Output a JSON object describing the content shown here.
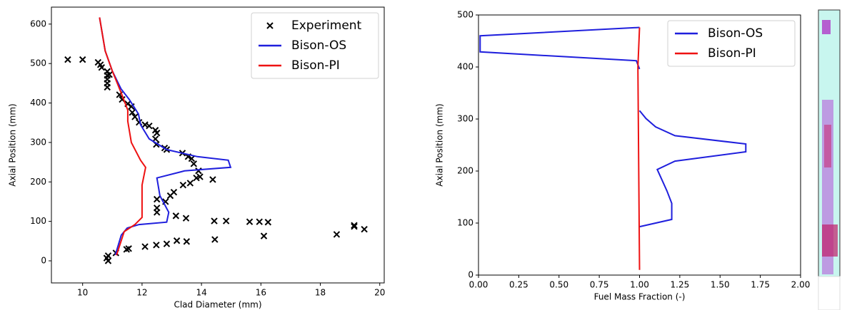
{
  "chart_data": [
    {
      "type": "line",
      "xlabel": "Clad Diameter (mm)",
      "ylabel": "Axial Position (mm)",
      "xlim": [
        8.95,
        20.15
      ],
      "ylim": [
        -56,
        643
      ],
      "xticks": [
        10,
        12,
        14,
        16,
        18,
        20
      ],
      "yticks": [
        0,
        100,
        200,
        300,
        400,
        500,
        600
      ],
      "legend": "upper right",
      "series": [
        {
          "name": "Experiment",
          "color": "#000000",
          "marker": "x",
          "x": [
            9.5,
            10.0,
            10.52,
            10.6,
            10.64,
            10.83,
            10.83,
            10.83,
            10.83,
            10.83,
            10.9,
            11.24,
            11.33,
            11.52,
            11.64,
            11.67,
            11.76,
            11.9,
            12.1,
            12.24,
            12.45,
            12.5,
            12.45,
            12.48,
            12.76,
            12.83,
            13.36,
            13.55,
            13.67,
            13.74,
            13.9,
            13.95,
            13.83,
            14.38,
            13.62,
            13.38,
            13.07,
            12.95,
            12.79,
            12.5,
            12.5,
            12.5,
            13.14,
            13.48,
            14.43,
            14.83,
            15.62,
            15.95,
            16.24,
            13.17,
            14.45,
            13.5,
            16.1,
            18.55,
            19.14,
            19.14,
            19.48,
            12.83,
            12.48,
            12.1,
            11.55,
            11.48,
            11.12,
            10.86,
            10.81,
            10.86
          ],
          "values": [
            510,
            510,
            503,
            497,
            490,
            480,
            470,
            460,
            450,
            440,
            472,
            421,
            409,
            398,
            391,
            376,
            365,
            351,
            345,
            342,
            331,
            324,
            309,
            295,
            286,
            282,
            273,
            264,
            259,
            246,
            228,
            213,
            210,
            206,
            197,
            192,
            174,
            165,
            150,
            156,
            134,
            123,
            114,
            108,
            101,
            101,
            99,
            99,
            98,
            51,
            54,
            49,
            63,
            67,
            90,
            87,
            80,
            43,
            40,
            36,
            31,
            29,
            20,
            13,
            7,
            0
          ]
        },
        {
          "name": "Bison-OS",
          "color": "#1f1fdd",
          "marker": "line",
          "x": [
            11.1,
            11.3,
            11.5,
            11.9,
            12.83,
            12.9,
            12.6,
            12.5,
            13.43,
            14.98,
            14.9,
            13.86,
            12.83,
            12.24,
            11.95,
            11.88,
            11.57,
            11.29,
            11.0,
            10.76,
            10.57
          ],
          "values": [
            15,
            65,
            83,
            92,
            98,
            123,
            165,
            210,
            228,
            237,
            255,
            264,
            282,
            309,
            345,
            372,
            409,
            436,
            481,
            532,
            617
          ]
        },
        {
          "name": "Bison-PI",
          "color": "#ee1111",
          "marker": "line",
          "x": [
            11.14,
            11.4,
            11.76,
            12.0,
            12.0,
            12.12,
            11.95,
            11.64,
            11.52,
            11.52,
            11.29,
            11.0,
            10.76,
            10.57
          ],
          "values": [
            14,
            74,
            92,
            110,
            192,
            237,
            255,
            300,
            354,
            382,
            427,
            481,
            532,
            617
          ]
        }
      ]
    },
    {
      "type": "line",
      "xlabel": "Fuel Mass Fraction (-)",
      "ylabel": "Axial Position (mm)",
      "xlim": [
        0,
        2
      ],
      "ylim": [
        0,
        500
      ],
      "xticks": [
        {
          "value": 0,
          "label": "0.00"
        },
        {
          "value": 0.25,
          "label": "0.25"
        },
        {
          "value": 0.5,
          "label": "0.50"
        },
        {
          "value": 0.75,
          "label": "0.75"
        },
        {
          "value": 1,
          "label": "1.00"
        },
        {
          "value": 1.25,
          "label": "1.25"
        },
        {
          "value": 1.5,
          "label": "1.50"
        },
        {
          "value": 1.75,
          "label": "1.75"
        },
        {
          "value": 2,
          "label": "2.00"
        }
      ],
      "yticks": [
        0,
        100,
        200,
        300,
        400,
        500
      ],
      "legend": "upper right",
      "series": [
        {
          "name": "Bison-OS",
          "color": "#1f1fdd",
          "marker": "line",
          "x": [
            1.0,
            0.01,
            0.01,
            0.98,
            1.0,
            null,
            1.0,
            1.2,
            1.2,
            1.17,
            1.11,
            1.22,
            1.66,
            1.66,
            1.22,
            1.1,
            1.04,
            1.0
          ],
          "values": [
            476,
            460,
            429,
            412,
            396,
            null,
            93,
            107,
            138,
            162,
            203,
            219,
            237,
            252,
            268,
            285,
            301,
            316
          ]
        },
        {
          "name": "Bison-PI",
          "color": "#ee1111",
          "marker": "line",
          "x": [
            1.0,
            0.99,
            1.0
          ],
          "values": [
            476,
            400,
            10
          ]
        }
      ]
    }
  ]
}
